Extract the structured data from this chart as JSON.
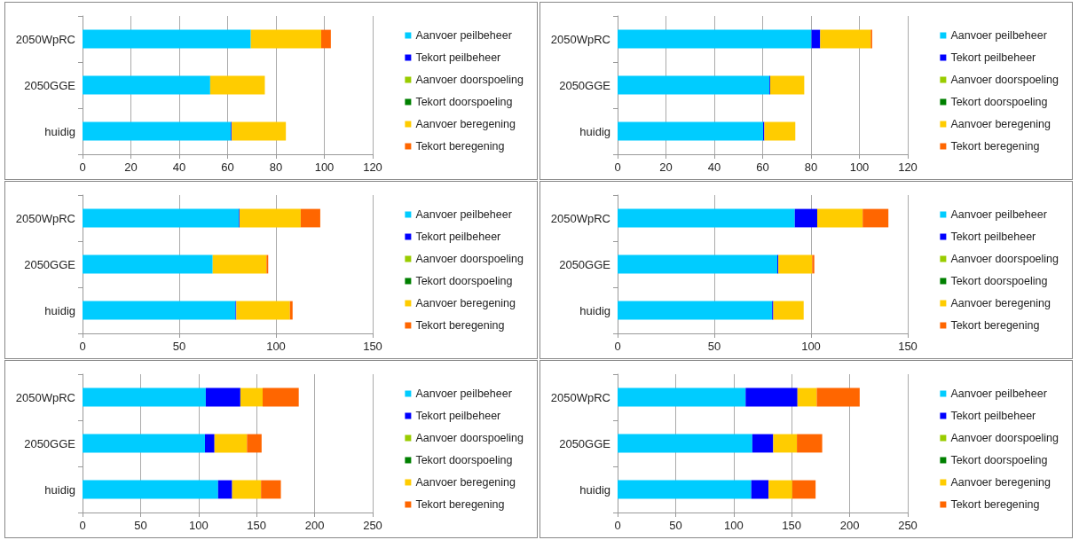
{
  "chart_data": [
    {
      "type": "bar",
      "orientation": "horizontal",
      "stacked": true,
      "categories": [
        "2050WpRC",
        "2050GGE",
        "huidig"
      ],
      "xlim": [
        0,
        120
      ],
      "xticks": [
        0,
        20,
        40,
        60,
        80,
        100,
        120
      ],
      "grid": "x",
      "legend": "right",
      "series": [
        {
          "name": "Aanvoer peilbeheer",
          "color": "#00ccff",
          "values": [
            69.6,
            52.8,
            61.4
          ]
        },
        {
          "name": "Tekort peilbeheer",
          "color": "#0000ff",
          "values": [
            null,
            null,
            0.3
          ]
        },
        {
          "name": "Aanvoer doorspoeling",
          "color": "#99cc00",
          "values": [
            0,
            0,
            0
          ]
        },
        {
          "name": "Tekort doorspoeling",
          "color": "#008000",
          "values": [
            0,
            0,
            0
          ]
        },
        {
          "name": "Aanvoer beregening",
          "color": "#ffcc00",
          "values": [
            29.1,
            22.6,
            22.4
          ]
        },
        {
          "name": "Tekort beregening",
          "color": "#ff6600",
          "values": [
            4,
            0,
            0
          ]
        }
      ]
    },
    {
      "type": "bar",
      "orientation": "horizontal",
      "stacked": true,
      "categories": [
        "2050WpRC",
        "2050GGE",
        "huidig"
      ],
      "xlim": [
        0,
        120
      ],
      "xticks": [
        0,
        20,
        40,
        60,
        80,
        100,
        120
      ],
      "grid": "x",
      "legend": "right",
      "series": [
        {
          "name": "Aanvoer peilbeheer",
          "color": "#00ccff",
          "values": [
            80.2,
            62.8,
            60.2
          ]
        },
        {
          "name": "Tekort peilbeheer",
          "color": "#0000ff",
          "values": [
            3.6,
            0.3,
            0.5
          ]
        },
        {
          "name": "Aanvoer doorspoeling",
          "color": "#99cc00",
          "values": [
            0,
            0,
            0
          ]
        },
        {
          "name": "Tekort doorspoeling",
          "color": "#008000",
          "values": [
            0,
            0,
            0
          ]
        },
        {
          "name": "Aanvoer beregening",
          "color": "#ffcc00",
          "values": [
            20.9,
            14.1,
            12.8
          ]
        },
        {
          "name": "Tekort beregening",
          "color": "#ff6600",
          "values": [
            0.6,
            0,
            0
          ]
        }
      ]
    },
    {
      "type": "bar",
      "orientation": "horizontal",
      "stacked": true,
      "categories": [
        "2050WpRC",
        "2050GGE",
        "huidig"
      ],
      "xlim": [
        0,
        150
      ],
      "xticks": [
        0,
        50,
        100,
        150
      ],
      "grid": "x",
      "legend": "right",
      "series": [
        {
          "name": "Aanvoer peilbeheer",
          "color": "#00ccff",
          "values": [
            80.9,
            67.3,
            79.1
          ]
        },
        {
          "name": "Tekort peilbeheer",
          "color": "#0000ff",
          "values": [
            0.3,
            null,
            0.4
          ]
        },
        {
          "name": "Aanvoer doorspoeling",
          "color": "#99cc00",
          "values": [
            0,
            0,
            0
          ]
        },
        {
          "name": "Tekort doorspoeling",
          "color": "#008000",
          "values": [
            0,
            0,
            0
          ]
        },
        {
          "name": "Aanvoer beregening",
          "color": "#ffcc00",
          "values": [
            31.6,
            27.8,
            27.7
          ]
        },
        {
          "name": "Tekort beregening",
          "color": "#ff6600",
          "values": [
            10.1,
            0.9,
            1.4
          ]
        }
      ]
    },
    {
      "type": "bar",
      "orientation": "horizontal",
      "stacked": true,
      "categories": [
        "2050WpRC",
        "2050GGE",
        "huidig"
      ],
      "xlim": [
        0,
        150
      ],
      "xticks": [
        0,
        50,
        100,
        150
      ],
      "grid": "x",
      "legend": "right",
      "series": [
        {
          "name": "Aanvoer peilbeheer",
          "color": "#00ccff",
          "values": [
            91.6,
            82.6,
            79.9
          ]
        },
        {
          "name": "Tekort peilbeheer",
          "color": "#0000ff",
          "values": [
            11.6,
            0.5,
            0.6
          ]
        },
        {
          "name": "Aanvoer doorspoeling",
          "color": "#99cc00",
          "values": [
            0,
            0,
            0
          ]
        },
        {
          "name": "Tekort doorspoeling",
          "color": "#008000",
          "values": [
            0,
            0,
            0
          ]
        },
        {
          "name": "Aanvoer beregening",
          "color": "#ffcc00",
          "values": [
            23.5,
            17.5,
            15.7
          ]
        },
        {
          "name": "Tekort beregening",
          "color": "#ff6600",
          "values": [
            13.3,
            1.1,
            0
          ]
        }
      ]
    },
    {
      "type": "bar",
      "orientation": "horizontal",
      "stacked": true,
      "categories": [
        "2050WpRC",
        "2050GGE",
        "huidig"
      ],
      "xlim": [
        0,
        250
      ],
      "xticks": [
        0,
        50,
        100,
        150,
        200,
        250
      ],
      "grid": "x",
      "legend": "right",
      "series": [
        {
          "name": "Aanvoer peilbeheer",
          "color": "#00ccff",
          "values": [
            106.2,
            105.5,
            116.8
          ]
        },
        {
          "name": "Tekort peilbeheer",
          "color": "#0000ff",
          "values": [
            29.8,
            8.2,
            12.1
          ]
        },
        {
          "name": "Aanvoer doorspoeling",
          "color": "#99cc00",
          "values": [
            0,
            0,
            0
          ]
        },
        {
          "name": "Tekort doorspoeling",
          "color": "#008000",
          "values": [
            0,
            0,
            0
          ]
        },
        {
          "name": "Aanvoer beregening",
          "color": "#ffcc00",
          "values": [
            19.2,
            28,
            24.9
          ]
        },
        {
          "name": "Tekort beregening",
          "color": "#ff6600",
          "values": [
            31.1,
            12.6,
            17.1
          ]
        }
      ]
    },
    {
      "type": "bar",
      "orientation": "horizontal",
      "stacked": true,
      "categories": [
        "2050WpRC",
        "2050GGE",
        "huidig"
      ],
      "xlim": [
        0,
        250
      ],
      "xticks": [
        0,
        50,
        100,
        150,
        200,
        250
      ],
      "grid": "x",
      "legend": "right",
      "series": [
        {
          "name": "Aanvoer peilbeheer",
          "color": "#00ccff",
          "values": [
            110.3,
            116.1,
            115.2
          ]
        },
        {
          "name": "Tekort peilbeheer",
          "color": "#0000ff",
          "values": [
            44.7,
            18,
            14.9
          ]
        },
        {
          "name": "Aanvoer doorspoeling",
          "color": "#99cc00",
          "values": [
            0,
            0,
            0
          ]
        },
        {
          "name": "Tekort doorspoeling",
          "color": "#008000",
          "values": [
            0,
            0,
            0
          ]
        },
        {
          "name": "Aanvoer beregening",
          "color": "#ffcc00",
          "values": [
            16.6,
            20.4,
            20.4
          ]
        },
        {
          "name": "Tekort beregening",
          "color": "#ff6600",
          "values": [
            37,
            21.8,
            20.1
          ]
        }
      ]
    }
  ]
}
